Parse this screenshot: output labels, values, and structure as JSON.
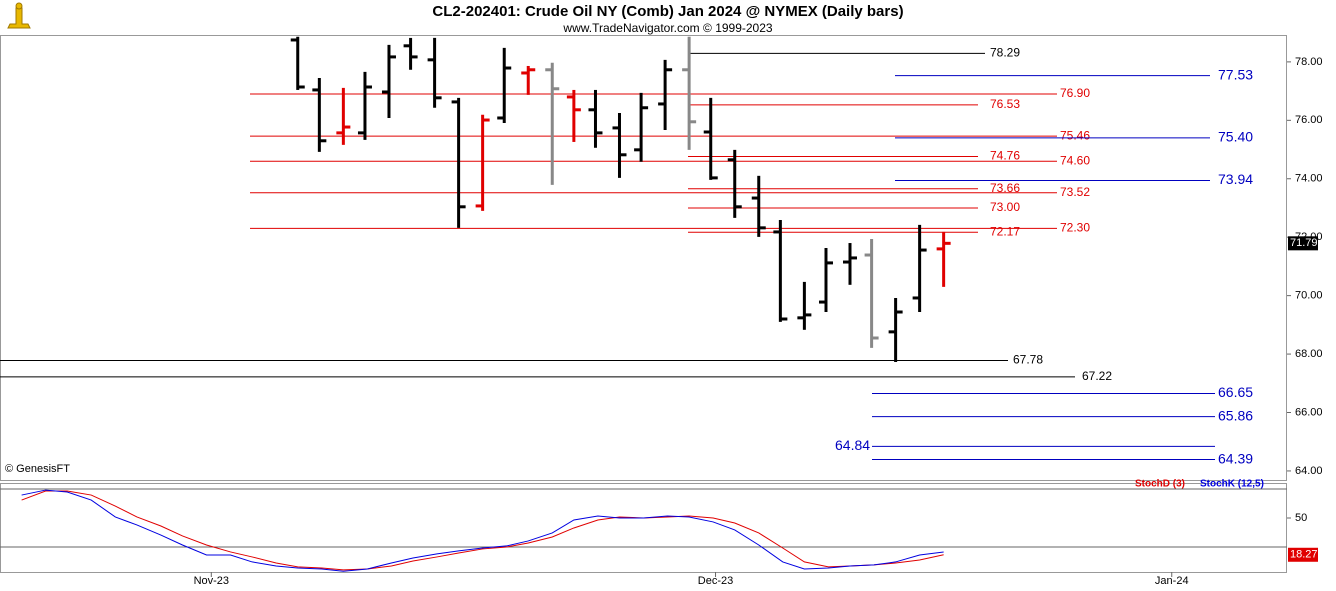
{
  "chart_data": [
    {
      "type": "ohlc",
      "title": "CL2-202401:  Crude Oil NY (Comb) Jan 2024 @ NYMEX  (Daily bars)",
      "subtitle": "www.TradeNavigator.com © 1999-2023",
      "watermark": "© GenesisFT",
      "x": [
        3.6,
        4.5,
        5.5,
        6.4,
        7.4,
        8.3,
        9.3,
        10.3,
        11.3,
        12.2,
        13.2,
        14.2,
        15.1,
        16.0,
        17.0,
        17.9,
        18.9,
        19.9,
        20.8,
        21.8,
        22.8,
        23.7,
        24.7,
        25.6,
        26.6,
        27.5,
        28.5,
        29.5,
        30.5
      ],
      "open": [
        78.75,
        77.04,
        75.57,
        75.57,
        76.97,
        78.55,
        78.07,
        76.63,
        73.07,
        76.08,
        77.62,
        77.73,
        76.8,
        76.36,
        75.74,
        74.99,
        76.56,
        77.73,
        75.6,
        74.65,
        73.34,
        72.18,
        69.24,
        69.78,
        71.15,
        71.39,
        68.76,
        69.92,
        71.6
      ],
      "high": [
        78.86,
        77.45,
        77.11,
        77.66,
        78.58,
        78.82,
        78.82,
        76.77,
        76.19,
        78.48,
        77.86,
        77.97,
        77.04,
        77.04,
        76.25,
        76.94,
        78.07,
        78.86,
        76.77,
        74.99,
        74.1,
        72.59,
        70.47,
        71.63,
        71.8,
        71.94,
        69.92,
        72.42,
        72.18
      ],
      "low": [
        77.04,
        74.92,
        75.16,
        75.33,
        76.08,
        77.73,
        76.43,
        72.32,
        72.9,
        75.91,
        76.87,
        73.79,
        75.26,
        75.06,
        74.03,
        74.58,
        75.67,
        74.99,
        73.96,
        72.66,
        72.01,
        69.1,
        68.83,
        69.44,
        70.37,
        68.21,
        67.73,
        69.44,
        70.3
      ],
      "close": [
        77.14,
        75.3,
        75.77,
        77.14,
        78.17,
        78.17,
        76.77,
        73.04,
        76.01,
        77.79,
        77.73,
        77.08,
        76.36,
        75.57,
        74.82,
        76.43,
        77.73,
        75.95,
        74.03,
        73.04,
        72.32,
        69.2,
        69.34,
        71.12,
        71.29,
        68.55,
        69.44,
        71.56,
        71.79
      ],
      "colors": [
        "#000000",
        "#000000",
        "#e00000",
        "#000000",
        "#000000",
        "#000000",
        "#000000",
        "#000000",
        "#e00000",
        "#000000",
        "#e00000",
        "#888888",
        "#e00000",
        "#000000",
        "#000000",
        "#000000",
        "#000000",
        "#888888",
        "#000000",
        "#000000",
        "#000000",
        "#000000",
        "#000000",
        "#000000",
        "#000000",
        "#888888",
        "#000000",
        "#000000",
        "#e00000"
      ],
      "xlim": [
        -8.8,
        44.8
      ],
      "xticks": [
        {
          "value": 0,
          "label": "Nov-23"
        },
        {
          "value": 21,
          "label": "Dec-23"
        },
        {
          "value": 40,
          "label": "Jan-24"
        }
      ],
      "ylim": [
        63.69,
        78.92
      ],
      "yticks": [
        {
          "value": 64,
          "label": "64.00"
        },
        {
          "value": 66,
          "label": "66.00"
        },
        {
          "value": 68,
          "label": "68.00"
        },
        {
          "value": 70,
          "label": "70.00"
        },
        {
          "value": 72,
          "label": "72.00"
        },
        {
          "value": 74,
          "label": "74.00"
        },
        {
          "value": 76,
          "label": "76.00"
        },
        {
          "value": 78,
          "label": "78.00"
        }
      ],
      "levels": [
        {
          "value": 78.29,
          "label": "78.29",
          "color": "#000000"
        },
        {
          "value": 77.53,
          "label": "77.53",
          "color": "#0000c0"
        },
        {
          "value": 76.9,
          "label": "76.90",
          "color": "#e00000"
        },
        {
          "value": 76.53,
          "label": "76.53",
          "color": "#e00000"
        },
        {
          "value": 75.46,
          "label": "75.46",
          "color": "#e00000"
        },
        {
          "value": 75.4,
          "label": "75.40",
          "color": "#0000c0"
        },
        {
          "value": 74.76,
          "label": "74.76",
          "color": "#e00000"
        },
        {
          "value": 74.6,
          "label": "74.60",
          "color": "#e00000"
        },
        {
          "value": 73.94,
          "label": "73.94",
          "color": "#0000c0"
        },
        {
          "value": 73.66,
          "label": "73.66",
          "color": "#e00000"
        },
        {
          "value": 73.52,
          "label": "73.52",
          "color": "#e00000"
        },
        {
          "value": 73.0,
          "label": "73.00",
          "color": "#e00000"
        },
        {
          "value": 72.3,
          "label": "72.30",
          "color": "#e00000"
        },
        {
          "value": 72.17,
          "label": "72.17",
          "color": "#e00000"
        },
        {
          "value": 67.78,
          "label": "67.78",
          "color": "#000000"
        },
        {
          "value": 67.22,
          "label": "67.22",
          "color": "#000000"
        },
        {
          "value": 66.65,
          "label": "66.65",
          "color": "#0000c0"
        },
        {
          "value": 65.86,
          "label": "65.86",
          "color": "#0000c0"
        },
        {
          "value": 64.84,
          "label": "64.84",
          "color": "#0000c0"
        },
        {
          "value": 64.39,
          "label": "64.39",
          "color": "#0000c0"
        }
      ]
    },
    {
      "type": "line",
      "x": [
        -7.9,
        -6.9,
        -6.0,
        -5.0,
        -4.0,
        -3.1,
        -2.1,
        -1.2,
        -0.2,
        0.8,
        1.7,
        2.7,
        3.6,
        4.6,
        5.5,
        6.5,
        7.5,
        8.4,
        9.4,
        10.3,
        11.3,
        12.3,
        13.2,
        14.2,
        15.1,
        16.1,
        17.0,
        18.0,
        19.0,
        19.9,
        20.9,
        21.8,
        22.8,
        23.8,
        24.7,
        25.7,
        26.6,
        27.6,
        28.5,
        29.5,
        30.5
      ],
      "series": [
        {
          "name": "StochD (3)",
          "color": "#e00000",
          "values": [
            65.5,
            73.3,
            73.3,
            69.8,
            60.3,
            50.9,
            43.1,
            34.5,
            26.7,
            20.7,
            16.4,
            11.2,
            7.8,
            6.9,
            5.2,
            6.0,
            8.6,
            12.9,
            16.4,
            19.8,
            23.3,
            25.0,
            28.4,
            33.6,
            41.4,
            48.3,
            50.9,
            50.0,
            50.9,
            51.7,
            50.0,
            45.7,
            37.1,
            24.1,
            12.1,
            7.8,
            8.6,
            9.5,
            11.2,
            13.8,
            18.27
          ]
        },
        {
          "name": "StochK (12,5)",
          "color": "#0000e0",
          "values": [
            69.8,
            74.1,
            72.4,
            65.5,
            50.9,
            44.0,
            35.3,
            26.7,
            18.1,
            18.1,
            12.1,
            8.6,
            6.9,
            6.0,
            4.0,
            6.0,
            11.2,
            15.5,
            19.0,
            21.6,
            24.1,
            25.9,
            30.2,
            37.1,
            48.3,
            51.7,
            50.0,
            50.0,
            51.7,
            50.9,
            46.6,
            39.7,
            26.7,
            12.1,
            6.0,
            6.9,
            8.6,
            9.5,
            12.1,
            18.1,
            20.7
          ]
        }
      ],
      "ylim": [
        3.4,
        80.2
      ],
      "yticks": [
        50
      ],
      "hlines": [
        75,
        25
      ]
    }
  ]
}
